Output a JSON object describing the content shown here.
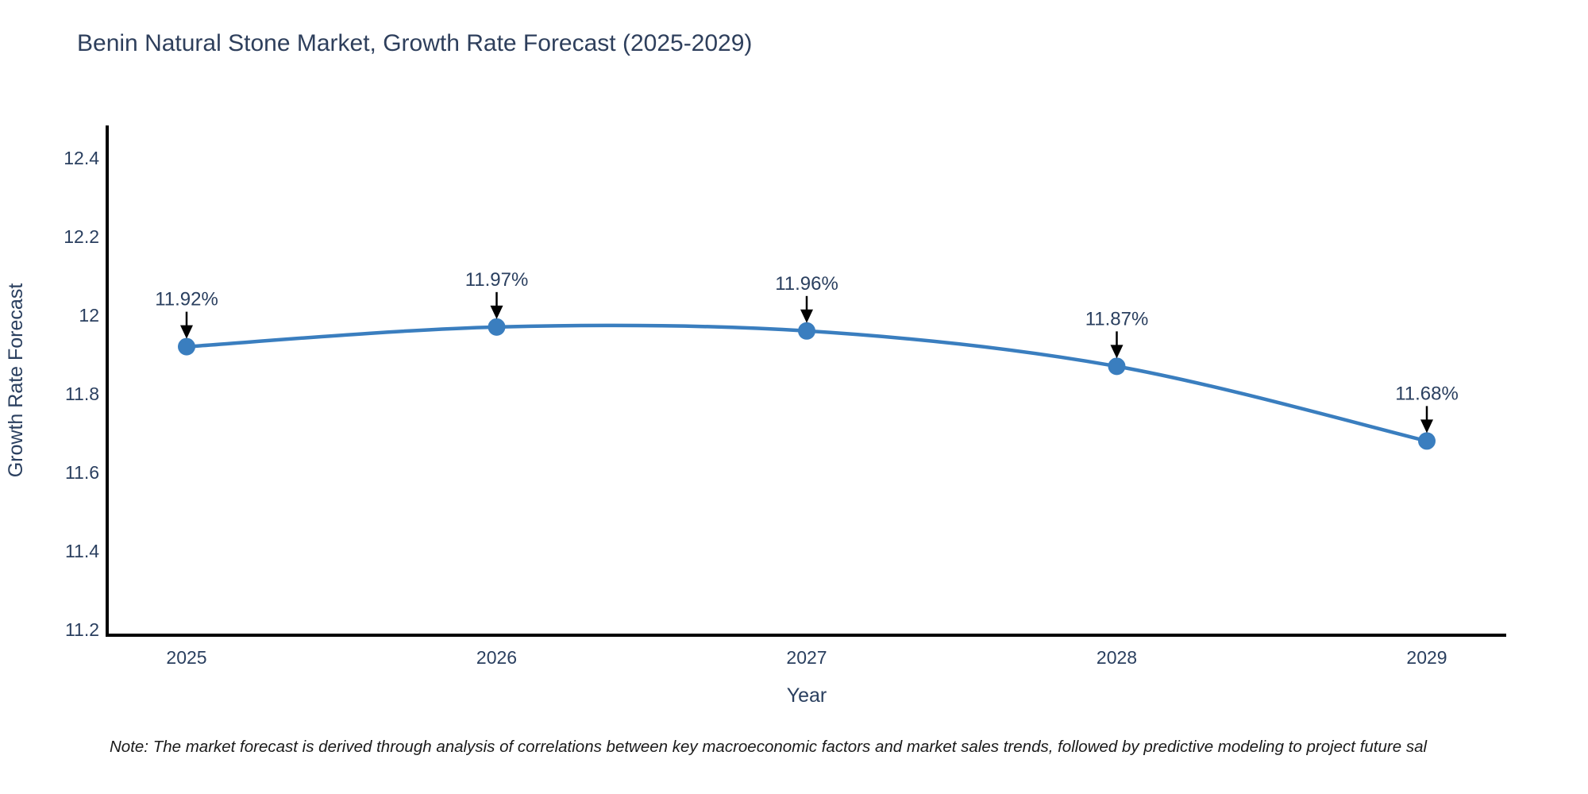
{
  "title": "Benin Natural Stone Market, Growth Rate Forecast (2025-2029)",
  "note": "Note: The market forecast is derived through analysis of correlations between key macroeconomic factors and market sales trends, followed by predictive modeling to project future sal",
  "colors": {
    "line": "#3a7ebf",
    "marker": "#3a7ebf",
    "axis_line": "#000000",
    "arrow": "#000000",
    "text": "#2a3f5f"
  },
  "chart_data": {
    "type": "line",
    "title": "Benin Natural Stone Market, Growth Rate Forecast (2025-2029)",
    "xlabel": "Year",
    "ylabel": "Growth Rate Forecast",
    "x": [
      2025,
      2026,
      2027,
      2028,
      2029
    ],
    "y": [
      11.92,
      11.97,
      11.96,
      11.87,
      11.68
    ],
    "point_labels": [
      "11.92%",
      "11.97%",
      "11.96%",
      "11.87%",
      "11.68%"
    ],
    "yticks": [
      11.2,
      11.4,
      11.6,
      11.8,
      12,
      12.2,
      12.4
    ],
    "ytick_labels": [
      "11.2",
      "11.4",
      "11.6",
      "11.8",
      "12",
      "12.2",
      "12.4"
    ],
    "ylim": [
      11.2,
      12.4
    ],
    "grid": false,
    "legend": "none",
    "marker": "circle",
    "annotations": "value labels with downward arrows above each point"
  }
}
